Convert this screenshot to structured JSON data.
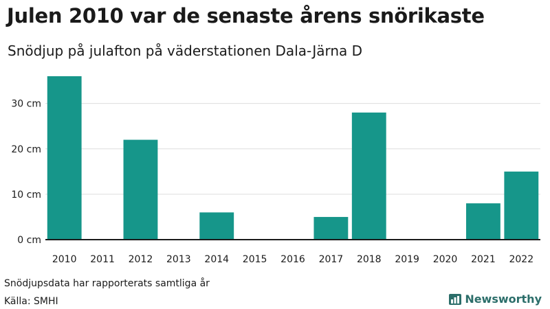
{
  "header": {
    "title": "Julen 2010 var de senaste årens snörikaste",
    "subtitle": "Snödjup på julafton på väderstationen Dala-Järna D"
  },
  "footer": {
    "note": "Snödjupsdata har rapporterats samtliga år",
    "source": "Källa: SMHI",
    "brand": "Newsworthy"
  },
  "colors": {
    "bar": "#16968a",
    "grid": "#dddddd",
    "axis": "#1a1a1a",
    "brand": "#2c6e6a"
  },
  "chart_data": {
    "type": "bar",
    "categories": [
      "2010",
      "2011",
      "2012",
      "2013",
      "2014",
      "2015",
      "2016",
      "2017",
      "2018",
      "2019",
      "2020",
      "2021",
      "2022"
    ],
    "values": [
      36,
      0,
      22,
      0,
      6,
      0,
      0,
      5,
      28,
      0,
      0,
      8,
      15
    ],
    "unit": "cm",
    "ylim": [
      0,
      36
    ],
    "yticks": [
      0,
      10,
      20,
      30
    ],
    "ytick_labels": [
      "0 cm",
      "10 cm",
      "20 cm",
      "30 cm"
    ],
    "grid": true
  }
}
